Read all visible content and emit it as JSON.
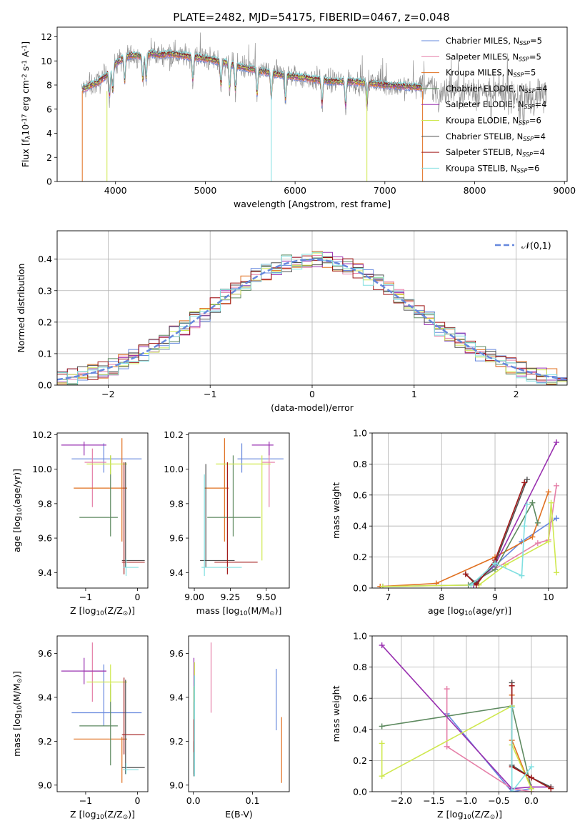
{
  "figure_title": "PLATE=2482, MJD=54175, FIBERID=0467, z=0.048",
  "colors": {
    "Chabrier MILES": "#6688dd",
    "Salpeter MILES": "#e57fa8",
    "Kroupa MILES": "#e07020",
    "Chabrier ELODIE": "#5e8a60",
    "Salpeter ELODIE": "#9930b0",
    "Kroupa ELODIE": "#cfe84f",
    "Chabrier STELIB": "#505050",
    "Salpeter STELIB": "#a01818",
    "Kroupa STELIB": "#80dfe0",
    "data": "#888888"
  },
  "chart_data": [
    {
      "id": "spectrum",
      "type": "line",
      "xlabel": "wavelength [Angstrom, rest frame]",
      "ylabel": "Flux [f$_\\lambda$10$^{-17}$ erg cm$^{-2}$ s$^{-1}$ A$^{-1}$]",
      "xlim": [
        3350,
        9030
      ],
      "ylim": [
        0,
        12.8
      ],
      "xticks": [
        4000,
        5000,
        6000,
        7000,
        8000,
        9000
      ],
      "yticks": [
        0,
        2,
        4,
        6,
        8,
        10,
        12
      ],
      "legend_position": "top-right",
      "legend": [
        {
          "label": "Chabrier MILES, N",
          "sub": "SSP",
          "tail": "=5"
        },
        {
          "label": "Salpeter MILES, N",
          "sub": "SSP",
          "tail": "=5"
        },
        {
          "label": "Kroupa MILES, N",
          "sub": "SSP",
          "tail": "=5"
        },
        {
          "label": "Chabrier ELODIE, N",
          "sub": "SSP",
          "tail": "=4"
        },
        {
          "label": "Salpeter ELODIE, N",
          "sub": "SSP",
          "tail": "=4"
        },
        {
          "label": "Kroupa ELODIE, N",
          "sub": "SSP",
          "tail": "=6"
        },
        {
          "label": "Chabrier STELIB, N",
          "sub": "SSP",
          "tail": "=4"
        },
        {
          "label": "Salpeter STELIB, N",
          "sub": "SSP",
          "tail": "=4"
        },
        {
          "label": "Kroupa STELIB, N",
          "sub": "SSP",
          "tail": "=6"
        }
      ],
      "continuum": {
        "x": [
          3620,
          3700,
          3800,
          3900,
          4000,
          4100,
          4200,
          4300,
          4400,
          4500,
          4600,
          4700,
          4800,
          4900,
          5000,
          5200,
          5400,
          5600,
          5800,
          6000,
          6200,
          6400,
          6600,
          6800,
          7000,
          7200,
          7420,
          7600,
          7800,
          8000,
          8200,
          8400,
          8600,
          8800
        ],
        "y": [
          7.6,
          7.9,
          8.2,
          8.8,
          9.8,
          10.3,
          10.5,
          10.4,
          10.6,
          10.5,
          10.6,
          10.5,
          10.4,
          10.3,
          10.2,
          9.9,
          9.5,
          9.2,
          8.9,
          8.7,
          8.5,
          8.3,
          8.3,
          8.2,
          8.0,
          7.9,
          7.8,
          7.7,
          7.6,
          7.5,
          7.4,
          7.3,
          7.2,
          7.1
        ]
      },
      "absorption_lines": [
        3934,
        3969,
        4102,
        4304,
        4341,
        4861,
        5175,
        5270,
        5335,
        5577,
        5735,
        5893,
        6300,
        6563,
        6800,
        7600,
        8183,
        8498,
        8542,
        8662
      ]
    },
    {
      "id": "residuals",
      "type": "histogram",
      "xlabel": "(data-model)/error",
      "ylabel": "Normed distribution",
      "xlim": [
        -2.5,
        2.5
      ],
      "ylim": [
        0,
        0.49
      ],
      "xticks": [
        -2,
        -1,
        0,
        1,
        2
      ],
      "yticks": [
        0.0,
        0.1,
        0.2,
        0.3,
        0.4
      ],
      "legend_label": "$\\mathcal{N}(0,1)$",
      "legend_position": "top-right",
      "bin_width": 0.1
    },
    {
      "id": "age-vs-z",
      "type": "scatter",
      "xlabel": "Z [log$_{10}$(Z/Z$_\\odot$)]",
      "ylabel": "age  [log$_{10}$(age/yr)]",
      "xlim": [
        -1.55,
        0.2
      ],
      "ylim": [
        9.31,
        10.21
      ],
      "xticks": [
        -1,
        0
      ],
      "yticks": [
        9.4,
        9.6,
        9.8,
        10.0,
        10.2
      ],
      "points": [
        {
          "s": "Chabrier MILES",
          "x": -0.65,
          "y": 10.06,
          "xlo": -1.27,
          "xhi": 0.08,
          "ylo": 9.98,
          "yhi": 10.15
        },
        {
          "s": "Salpeter MILES",
          "x": -0.87,
          "y": 10.04,
          "xlo": -1.02,
          "xhi": -0.6,
          "ylo": 9.78,
          "yhi": 10.12
        },
        {
          "s": "Kroupa MILES",
          "x": -0.3,
          "y": 9.89,
          "xlo": -1.23,
          "xhi": -0.2,
          "ylo": 9.58,
          "yhi": 10.18
        },
        {
          "s": "Chabrier ELODIE",
          "x": -0.52,
          "y": 9.72,
          "xlo": -1.12,
          "xhi": -0.38,
          "ylo": 9.61,
          "yhi": 10.08
        },
        {
          "s": "Salpeter ELODIE",
          "x": -1.03,
          "y": 10.14,
          "xlo": -1.47,
          "xhi": -0.6,
          "ylo": 10.08,
          "yhi": 10.16
        },
        {
          "s": "Kroupa ELODIE",
          "x": -0.52,
          "y": 10.03,
          "xlo": -0.98,
          "xhi": -0.2,
          "ylo": 9.97,
          "yhi": 10.08
        },
        {
          "s": "Chabrier STELIB",
          "x": -0.23,
          "y": 9.47,
          "xlo": -0.3,
          "xhi": 0.14,
          "ylo": 9.43,
          "yhi": 10.04
        },
        {
          "s": "Salpeter STELIB",
          "x": -0.26,
          "y": 9.46,
          "xlo": -0.3,
          "xhi": 0.14,
          "ylo": 9.39,
          "yhi": 10.04
        },
        {
          "s": "Kroupa STELIB",
          "x": -0.22,
          "y": 9.43,
          "xlo": -0.28,
          "xhi": 0.02,
          "ylo": 9.38,
          "yhi": 9.48
        }
      ]
    },
    {
      "id": "age-vs-mass",
      "type": "scatter",
      "xlabel": "mass [log$_{10}$(M/M$_\\odot$)]",
      "ylabel": "",
      "xlim": [
        8.96,
        9.66
      ],
      "ylim": [
        9.31,
        10.21
      ],
      "xticks": [
        9.0,
        9.25,
        9.5
      ],
      "xticklabels": [
        "9.00",
        "9.25",
        "9.50"
      ],
      "yticks": [
        9.4,
        9.6,
        9.8,
        10.0,
        10.2
      ],
      "points": [
        {
          "s": "Chabrier MILES",
          "x": 9.33,
          "y": 10.06,
          "xlo": 9.3,
          "xhi": 9.62,
          "ylo": 9.98,
          "yhi": 10.15
        },
        {
          "s": "Salpeter MILES",
          "x": 9.52,
          "y": 10.04,
          "xlo": 9.47,
          "xhi": 9.56,
          "ylo": 9.78,
          "yhi": 10.14
        },
        {
          "s": "Kroupa MILES",
          "x": 9.21,
          "y": 9.89,
          "xlo": 9.07,
          "xhi": 9.24,
          "ylo": 9.58,
          "yhi": 10.18
        },
        {
          "s": "Chabrier ELODIE",
          "x": 9.27,
          "y": 9.72,
          "xlo": 9.09,
          "xhi": 9.46,
          "ylo": 9.61,
          "yhi": 10.08
        },
        {
          "s": "Salpeter ELODIE",
          "x": 9.52,
          "y": 10.14,
          "xlo": 9.4,
          "xhi": 9.55,
          "ylo": 10.08,
          "yhi": 10.16
        },
        {
          "s": "Kroupa ELODIE",
          "x": 9.47,
          "y": 10.03,
          "xlo": 9.15,
          "xhi": 9.53,
          "ylo": 9.47,
          "yhi": 10.08
        },
        {
          "s": "Chabrier STELIB",
          "x": 9.08,
          "y": 9.47,
          "xlo": 9.04,
          "xhi": 9.28,
          "ylo": 9.43,
          "yhi": 10.03
        },
        {
          "s": "Salpeter STELIB",
          "x": 9.23,
          "y": 9.46,
          "xlo": 9.14,
          "xhi": 9.44,
          "ylo": 9.39,
          "yhi": 10.04
        },
        {
          "s": "Kroupa STELIB",
          "x": 9.07,
          "y": 9.43,
          "xlo": 9.05,
          "xhi": 9.33,
          "ylo": 9.38,
          "yhi": 9.97
        }
      ]
    },
    {
      "id": "massweight-vs-age",
      "type": "line",
      "xlabel": "age  [log$_{10}$(age/yr)]",
      "ylabel": "mass weight",
      "xlim": [
        6.7,
        10.35
      ],
      "ylim": [
        0,
        1.0
      ],
      "xticks": [
        7,
        8,
        9,
        10
      ],
      "yticks": [
        0.0,
        0.2,
        0.4,
        0.6,
        0.8,
        1.0
      ],
      "grid": true,
      "series": [
        {
          "s": "Chabrier MILES",
          "x": [
            6.9,
            8.6,
            9.5,
            10.15
          ],
          "y": [
            0.01,
            0.02,
            0.3,
            0.45
          ]
        },
        {
          "s": "Salpeter MILES",
          "x": [
            8.5,
            9.8,
            10.0,
            10.15
          ],
          "y": [
            0.02,
            0.29,
            0.31,
            0.66
          ]
        },
        {
          "s": "Kroupa MILES",
          "x": [
            6.85,
            7.9,
            9.0,
            9.7,
            10.0
          ],
          "y": [
            0.01,
            0.03,
            0.2,
            0.33,
            0.62
          ]
        },
        {
          "s": "Chabrier ELODIE",
          "x": [
            8.5,
            9.0,
            9.7,
            9.8
          ],
          "y": [
            0.02,
            0.12,
            0.55,
            0.42
          ]
        },
        {
          "s": "Salpeter ELODIE",
          "x": [
            8.6,
            9.0,
            10.15
          ],
          "y": [
            0.02,
            0.15,
            0.94
          ]
        },
        {
          "s": "Kroupa ELODIE",
          "x": [
            6.9,
            8.7,
            9.2,
            10.0,
            10.05,
            10.15
          ],
          "y": [
            0.01,
            0.02,
            0.15,
            0.3,
            0.55,
            0.1
          ]
        },
        {
          "s": "Chabrier STELIB",
          "x": [
            8.45,
            8.65,
            9.0,
            9.6
          ],
          "y": [
            0.09,
            0.03,
            0.16,
            0.7
          ]
        },
        {
          "s": "Salpeter STELIB",
          "x": [
            8.45,
            8.65,
            9.0,
            9.55
          ],
          "y": [
            0.09,
            0.02,
            0.18,
            0.68
          ]
        },
        {
          "s": "Kroupa STELIB",
          "x": [
            8.55,
            9.0,
            9.5,
            9.55,
            9.6
          ],
          "y": [
            0.02,
            0.16,
            0.08,
            0.4,
            0.54
          ]
        }
      ]
    },
    {
      "id": "mass-vs-z",
      "type": "scatter",
      "xlabel": "Z [log$_{10}$(Z/Z$_\\odot$)]",
      "ylabel": "mass [log$_{10}$(M/M$_\\odot$)]",
      "xlim": [
        -1.55,
        0.2
      ],
      "ylim": [
        8.97,
        9.68
      ],
      "xticks": [
        -1,
        0
      ],
      "yticks": [
        9.0,
        9.2,
        9.4,
        9.6
      ],
      "points": [
        {
          "s": "Chabrier MILES",
          "x": -0.65,
          "y": 9.33,
          "xlo": -1.27,
          "xhi": 0.08,
          "ylo": 9.27,
          "yhi": 9.55
        },
        {
          "s": "Salpeter MILES",
          "x": -0.87,
          "y": 9.52,
          "xlo": -1.02,
          "xhi": -0.6,
          "ylo": 9.38,
          "yhi": 9.65
        },
        {
          "s": "Kroupa MILES",
          "x": -0.3,
          "y": 9.21,
          "xlo": -1.23,
          "xhi": -0.2,
          "ylo": 9.01,
          "yhi": 9.22
        },
        {
          "s": "Chabrier ELODIE",
          "x": -0.52,
          "y": 9.27,
          "xlo": -1.12,
          "xhi": -0.38,
          "ylo": 9.09,
          "yhi": 9.46
        },
        {
          "s": "Salpeter ELODIE",
          "x": -1.03,
          "y": 9.52,
          "xlo": -1.47,
          "xhi": -0.6,
          "ylo": 9.46,
          "yhi": 9.58
        },
        {
          "s": "Kroupa ELODIE",
          "x": -0.52,
          "y": 9.47,
          "xlo": -0.98,
          "xhi": -0.2,
          "ylo": 9.38,
          "yhi": 9.55
        },
        {
          "s": "Chabrier STELIB",
          "x": -0.23,
          "y": 9.08,
          "xlo": -0.3,
          "xhi": 0.14,
          "ylo": 9.05,
          "yhi": 9.48
        },
        {
          "s": "Salpeter STELIB",
          "x": -0.26,
          "y": 9.23,
          "xlo": -0.3,
          "xhi": 0.14,
          "ylo": 9.14,
          "yhi": 9.49
        },
        {
          "s": "Kroupa STELIB",
          "x": -0.22,
          "y": 9.07,
          "xlo": -0.28,
          "xhi": 0.02,
          "ylo": 9.05,
          "yhi": 9.1
        }
      ]
    },
    {
      "id": "mass-vs-ebv",
      "type": "scatter",
      "xlabel": "E(B-V)",
      "ylabel": "",
      "xlim": [
        -0.008,
        0.162
      ],
      "ylim": [
        8.97,
        9.68
      ],
      "xticks": [
        0.0,
        0.1
      ],
      "yticks": [
        9.0,
        9.2,
        9.4,
        9.6
      ],
      "points": [
        {
          "s": "Chabrier MILES",
          "x": 0.14,
          "y": 9.39,
          "ylo": 9.25,
          "yhi": 9.53
        },
        {
          "s": "Salpeter MILES",
          "x": 0.03,
          "y": 9.49,
          "ylo": 9.33,
          "yhi": 9.65
        },
        {
          "s": "Kroupa MILES",
          "x": 0.149,
          "y": 9.16,
          "ylo": 9.01,
          "yhi": 9.31
        },
        {
          "s": "Chabrier ELODIE",
          "x": 0.001,
          "y": 9.27,
          "ylo": 9.05,
          "yhi": 9.45
        },
        {
          "s": "Salpeter ELODIE",
          "x": 0.001,
          "y": 9.52,
          "ylo": 9.45,
          "yhi": 9.58
        },
        {
          "s": "Kroupa ELODIE",
          "x": 0.002,
          "y": 9.47,
          "ylo": 9.38,
          "yhi": 9.56
        },
        {
          "s": "Chabrier STELIB",
          "x": 0.001,
          "y": 9.08,
          "ylo": 9.04,
          "yhi": 9.2
        },
        {
          "s": "Salpeter STELIB",
          "x": 0.001,
          "y": 9.23,
          "ylo": 9.15,
          "yhi": 9.3
        },
        {
          "s": "Kroupa STELIB",
          "x": 0.002,
          "y": 9.07,
          "ylo": 9.04,
          "yhi": 9.5
        }
      ]
    },
    {
      "id": "massweight-vs-z",
      "type": "line",
      "xlabel": "Z [log$_{10}$(Z/Z$_\\odot$)]",
      "ylabel": "mass weight",
      "xlim": [
        -2.45,
        0.55
      ],
      "ylim": [
        0,
        1.0
      ],
      "xticks": [
        -2.0,
        -1.5,
        -1.0,
        -0.5,
        0.0
      ],
      "yticks": [
        0.0,
        0.2,
        0.4,
        0.6,
        0.8,
        1.0
      ],
      "grid": true,
      "series": [
        {
          "s": "Chabrier MILES",
          "x": [
            -1.3,
            -0.3,
            0.0
          ],
          "y": [
            0.5,
            0.0,
            0.02
          ]
        },
        {
          "s": "Salpeter MILES",
          "x": [
            -1.3,
            -1.3,
            -0.3,
            0.0
          ],
          "y": [
            0.66,
            0.29,
            0.02,
            0.0
          ]
        },
        {
          "s": "Kroupa MILES",
          "x": [
            -0.3,
            -0.3,
            0.0
          ],
          "y": [
            0.62,
            0.33,
            0.02
          ]
        },
        {
          "s": "Chabrier ELODIE",
          "x": [
            -2.3,
            -0.3,
            0.0
          ],
          "y": [
            0.42,
            0.55,
            0.02
          ]
        },
        {
          "s": "Salpeter ELODIE",
          "x": [
            -2.3,
            -0.3,
            0.0,
            0.3
          ],
          "y": [
            0.94,
            0.02,
            0.03,
            0.03
          ]
        },
        {
          "s": "Kroupa ELODIE",
          "x": [
            -2.3,
            -2.3,
            -0.3,
            -0.3,
            0.0
          ],
          "y": [
            0.31,
            0.1,
            0.55,
            0.3,
            0.02
          ]
        },
        {
          "s": "Chabrier STELIB",
          "x": [
            -0.3,
            -0.3,
            0.0,
            0.3
          ],
          "y": [
            0.7,
            0.17,
            0.09,
            0.03
          ]
        },
        {
          "s": "Salpeter STELIB",
          "x": [
            -0.3,
            -0.3,
            0.0,
            0.3
          ],
          "y": [
            0.68,
            0.16,
            0.09,
            0.02
          ]
        },
        {
          "s": "Kroupa STELIB",
          "x": [
            -0.3,
            -0.3,
            0.0
          ],
          "y": [
            0.54,
            0.0,
            0.16
          ]
        }
      ]
    }
  ]
}
